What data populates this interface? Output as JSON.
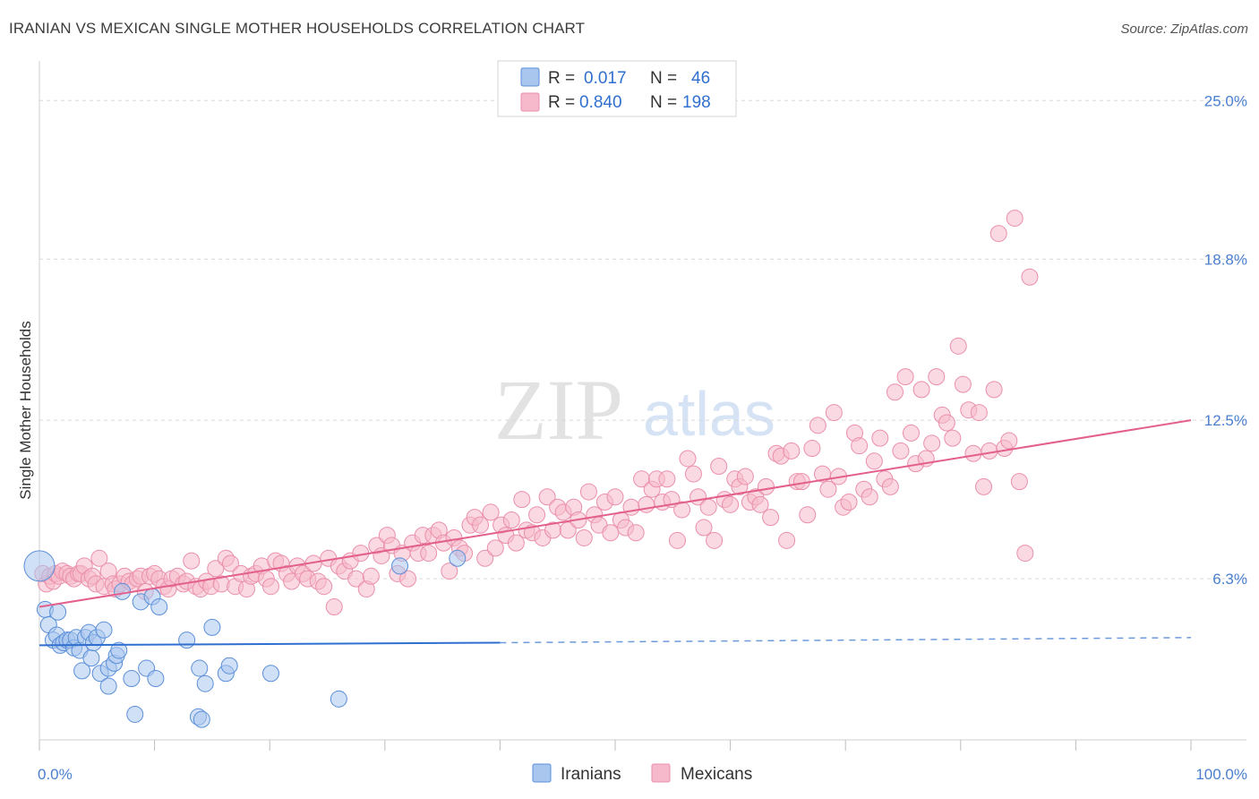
{
  "title": "IRANIAN VS MEXICAN SINGLE MOTHER HOUSEHOLDS CORRELATION CHART",
  "source": "Source: ZipAtlas.com",
  "watermark": {
    "part1": "ZIP",
    "part2": "atlas"
  },
  "colors": {
    "iranians_fill": "#a9c6ef",
    "iranians_stroke": "#5b8fd8",
    "iranians_line": "#2f6fcf",
    "mexicans_fill": "#f6b9cb",
    "mexicans_stroke": "#ea8fab",
    "mexicans_line": "#e2608b",
    "tick_label": "#4a7fd0",
    "grid": "#d9d9d9"
  },
  "legend": {
    "rows": [
      {
        "r_label": "R =",
        "r_value": "0.017",
        "n_label": "N =",
        "n_value": "46"
      },
      {
        "r_label": "R =",
        "r_value": "0.840",
        "n_label": "N =",
        "n_value": "198"
      }
    ]
  },
  "chart_data": {
    "type": "scatter",
    "xlabel": "",
    "ylabel": "Single Mother Households",
    "xlim": [
      0,
      100
    ],
    "ylim": [
      0,
      26.2
    ],
    "x_tick_labels": [
      "0.0%",
      "100.0%"
    ],
    "y_ticks": [
      6.3,
      12.5,
      18.8,
      25.0
    ],
    "y_tick_labels": [
      "6.3%",
      "12.5%",
      "18.8%",
      "25.0%"
    ],
    "grid": "horizontal dashed",
    "legend_position": "top-center",
    "series": [
      {
        "name": "Iranians",
        "r": 0.017,
        "n": 46,
        "trend": {
          "x": [
            0,
            40,
            100
          ],
          "y": [
            3.7,
            3.8,
            4.0
          ],
          "solid_until": 40
        },
        "points": [
          [
            0.0,
            6.8
          ],
          [
            0.5,
            5.1
          ],
          [
            0.8,
            4.5
          ],
          [
            1.2,
            3.9
          ],
          [
            1.5,
            4.1
          ],
          [
            1.6,
            5.0
          ],
          [
            1.8,
            3.7
          ],
          [
            2.1,
            3.8
          ],
          [
            2.4,
            3.9
          ],
          [
            2.7,
            3.9
          ],
          [
            3.0,
            3.6
          ],
          [
            3.2,
            4.0
          ],
          [
            3.5,
            3.5
          ],
          [
            3.7,
            2.7
          ],
          [
            4.0,
            4.0
          ],
          [
            4.3,
            4.2
          ],
          [
            4.5,
            3.2
          ],
          [
            4.7,
            3.8
          ],
          [
            5.0,
            4.0
          ],
          [
            5.3,
            2.6
          ],
          [
            5.6,
            4.3
          ],
          [
            6.0,
            2.8
          ],
          [
            6.0,
            2.1
          ],
          [
            6.5,
            3.0
          ],
          [
            6.7,
            3.3
          ],
          [
            6.9,
            3.5
          ],
          [
            7.2,
            5.8
          ],
          [
            8.0,
            2.4
          ],
          [
            8.3,
            1.0
          ],
          [
            8.8,
            5.4
          ],
          [
            9.3,
            2.8
          ],
          [
            9.8,
            5.6
          ],
          [
            10.1,
            2.4
          ],
          [
            10.4,
            5.2
          ],
          [
            12.8,
            3.9
          ],
          [
            13.8,
            0.9
          ],
          [
            13.9,
            2.8
          ],
          [
            14.1,
            0.8
          ],
          [
            14.4,
            2.2
          ],
          [
            15.0,
            4.4
          ],
          [
            16.2,
            2.6
          ],
          [
            16.5,
            2.9
          ],
          [
            20.1,
            2.6
          ],
          [
            26.0,
            1.6
          ],
          [
            31.3,
            6.8
          ],
          [
            36.3,
            7.1
          ]
        ]
      },
      {
        "name": "Mexicans",
        "r": 0.84,
        "n": 198,
        "trend": {
          "x": [
            0,
            100
          ],
          "y": [
            5.2,
            12.5
          ]
        },
        "points": [
          [
            0.3,
            6.5
          ],
          [
            0.6,
            6.1
          ],
          [
            0.9,
            6.4
          ],
          [
            1.2,
            6.2
          ],
          [
            1.4,
            6.5
          ],
          [
            1.7,
            6.4
          ],
          [
            2.0,
            6.6
          ],
          [
            2.4,
            6.5
          ],
          [
            2.7,
            6.4
          ],
          [
            3.0,
            6.3
          ],
          [
            3.4,
            6.5
          ],
          [
            3.6,
            6.5
          ],
          [
            3.9,
            6.8
          ],
          [
            4.3,
            6.3
          ],
          [
            4.6,
            6.4
          ],
          [
            4.9,
            6.1
          ],
          [
            5.2,
            7.1
          ],
          [
            5.6,
            6.0
          ],
          [
            6.0,
            6.6
          ],
          [
            6.4,
            6.1
          ],
          [
            6.6,
            5.9
          ],
          [
            7.0,
            6.1
          ],
          [
            7.4,
            6.4
          ],
          [
            7.8,
            6.2
          ],
          [
            8.1,
            6.1
          ],
          [
            8.5,
            6.3
          ],
          [
            8.8,
            6.4
          ],
          [
            9.2,
            5.8
          ],
          [
            9.6,
            6.4
          ],
          [
            10.0,
            6.5
          ],
          [
            10.4,
            6.3
          ],
          [
            10.8,
            6.0
          ],
          [
            11.2,
            5.9
          ],
          [
            11.5,
            6.3
          ],
          [
            12.0,
            6.4
          ],
          [
            12.5,
            6.1
          ],
          [
            12.8,
            6.2
          ],
          [
            13.2,
            7.0
          ],
          [
            13.6,
            6.0
          ],
          [
            14.0,
            5.9
          ],
          [
            14.5,
            6.2
          ],
          [
            14.9,
            6.0
          ],
          [
            15.3,
            6.7
          ],
          [
            15.8,
            6.1
          ],
          [
            16.2,
            7.1
          ],
          [
            16.6,
            6.9
          ],
          [
            17.0,
            6.0
          ],
          [
            17.5,
            6.5
          ],
          [
            18.0,
            5.9
          ],
          [
            18.4,
            6.4
          ],
          [
            18.8,
            6.5
          ],
          [
            19.3,
            6.8
          ],
          [
            19.7,
            6.3
          ],
          [
            20.1,
            6.0
          ],
          [
            20.5,
            7.0
          ],
          [
            21.0,
            6.9
          ],
          [
            21.5,
            6.5
          ],
          [
            21.9,
            6.2
          ],
          [
            22.4,
            6.8
          ],
          [
            22.9,
            6.5
          ],
          [
            23.3,
            6.3
          ],
          [
            23.8,
            6.9
          ],
          [
            24.2,
            6.2
          ],
          [
            24.7,
            6.0
          ],
          [
            25.1,
            7.1
          ],
          [
            25.6,
            5.2
          ],
          [
            26.0,
            6.8
          ],
          [
            26.5,
            6.6
          ],
          [
            27.0,
            7.0
          ],
          [
            27.5,
            6.3
          ],
          [
            27.9,
            7.3
          ],
          [
            28.4,
            5.9
          ],
          [
            28.8,
            6.4
          ],
          [
            29.3,
            7.6
          ],
          [
            29.7,
            7.2
          ],
          [
            30.2,
            8.0
          ],
          [
            30.6,
            7.6
          ],
          [
            31.1,
            6.5
          ],
          [
            31.5,
            7.3
          ],
          [
            32.0,
            6.3
          ],
          [
            32.4,
            7.7
          ],
          [
            32.9,
            7.3
          ],
          [
            33.3,
            8.0
          ],
          [
            33.8,
            7.3
          ],
          [
            34.2,
            8.0
          ],
          [
            34.7,
            8.2
          ],
          [
            35.1,
            7.7
          ],
          [
            35.6,
            6.6
          ],
          [
            36.0,
            7.9
          ],
          [
            36.5,
            7.5
          ],
          [
            36.9,
            7.3
          ],
          [
            37.4,
            8.4
          ],
          [
            37.8,
            8.7
          ],
          [
            38.3,
            8.4
          ],
          [
            38.7,
            7.1
          ],
          [
            39.2,
            8.9
          ],
          [
            39.6,
            7.5
          ],
          [
            40.1,
            8.4
          ],
          [
            40.5,
            8.0
          ],
          [
            41.0,
            8.6
          ],
          [
            41.4,
            7.7
          ],
          [
            41.9,
            9.4
          ],
          [
            42.3,
            8.2
          ],
          [
            42.8,
            8.1
          ],
          [
            43.2,
            8.8
          ],
          [
            43.7,
            7.9
          ],
          [
            44.1,
            9.5
          ],
          [
            44.6,
            8.2
          ],
          [
            45.0,
            9.1
          ],
          [
            45.5,
            8.9
          ],
          [
            45.9,
            8.2
          ],
          [
            46.4,
            9.1
          ],
          [
            46.8,
            8.6
          ],
          [
            47.3,
            7.9
          ],
          [
            47.7,
            9.7
          ],
          [
            48.2,
            8.8
          ],
          [
            48.6,
            8.4
          ],
          [
            49.1,
            9.3
          ],
          [
            49.6,
            8.1
          ],
          [
            50.0,
            9.5
          ],
          [
            50.5,
            8.6
          ],
          [
            50.9,
            8.3
          ],
          [
            51.4,
            9.1
          ],
          [
            51.8,
            8.1
          ],
          [
            52.3,
            10.2
          ],
          [
            52.7,
            9.2
          ],
          [
            53.2,
            9.8
          ],
          [
            53.6,
            10.2
          ],
          [
            54.1,
            9.3
          ],
          [
            54.5,
            10.2
          ],
          [
            54.9,
            9.4
          ],
          [
            55.4,
            7.8
          ],
          [
            55.8,
            9.0
          ],
          [
            56.3,
            11.0
          ],
          [
            56.8,
            10.4
          ],
          [
            57.2,
            9.5
          ],
          [
            57.7,
            8.3
          ],
          [
            58.1,
            9.1
          ],
          [
            58.6,
            7.8
          ],
          [
            59.0,
            10.7
          ],
          [
            59.5,
            9.4
          ],
          [
            60.0,
            9.2
          ],
          [
            60.4,
            10.2
          ],
          [
            60.8,
            9.9
          ],
          [
            61.3,
            10.3
          ],
          [
            61.7,
            9.3
          ],
          [
            62.2,
            9.5
          ],
          [
            62.6,
            9.2
          ],
          [
            63.1,
            9.9
          ],
          [
            63.5,
            8.7
          ],
          [
            64.0,
            11.2
          ],
          [
            64.4,
            11.1
          ],
          [
            64.9,
            7.8
          ],
          [
            65.3,
            11.3
          ],
          [
            65.8,
            10.1
          ],
          [
            66.2,
            10.1
          ],
          [
            66.7,
            8.8
          ],
          [
            67.1,
            11.4
          ],
          [
            67.6,
            12.3
          ],
          [
            68.0,
            10.4
          ],
          [
            68.5,
            9.8
          ],
          [
            69.0,
            12.8
          ],
          [
            69.4,
            10.3
          ],
          [
            69.8,
            9.1
          ],
          [
            70.3,
            9.3
          ],
          [
            70.8,
            12.0
          ],
          [
            71.2,
            11.5
          ],
          [
            71.6,
            9.8
          ],
          [
            72.1,
            9.5
          ],
          [
            72.5,
            10.9
          ],
          [
            73.0,
            11.8
          ],
          [
            73.4,
            10.2
          ],
          [
            73.9,
            9.9
          ],
          [
            74.3,
            13.6
          ],
          [
            74.8,
            11.3
          ],
          [
            75.2,
            14.2
          ],
          [
            75.7,
            12.0
          ],
          [
            76.1,
            10.8
          ],
          [
            76.6,
            13.7
          ],
          [
            77.0,
            11.0
          ],
          [
            77.5,
            11.6
          ],
          [
            77.9,
            14.2
          ],
          [
            78.4,
            12.7
          ],
          [
            78.8,
            12.4
          ],
          [
            79.3,
            11.8
          ],
          [
            79.8,
            15.4
          ],
          [
            80.2,
            13.9
          ],
          [
            80.7,
            12.9
          ],
          [
            81.1,
            11.2
          ],
          [
            81.6,
            12.8
          ],
          [
            82.0,
            9.9
          ],
          [
            82.5,
            11.3
          ],
          [
            82.9,
            13.7
          ],
          [
            83.3,
            19.8
          ],
          [
            83.8,
            11.4
          ],
          [
            84.2,
            11.7
          ],
          [
            84.7,
            20.4
          ],
          [
            85.1,
            10.1
          ],
          [
            85.6,
            7.3
          ],
          [
            86.0,
            18.1
          ]
        ]
      }
    ]
  },
  "bottom_legend": [
    {
      "label": "Iranians"
    },
    {
      "label": "Mexicans"
    }
  ]
}
